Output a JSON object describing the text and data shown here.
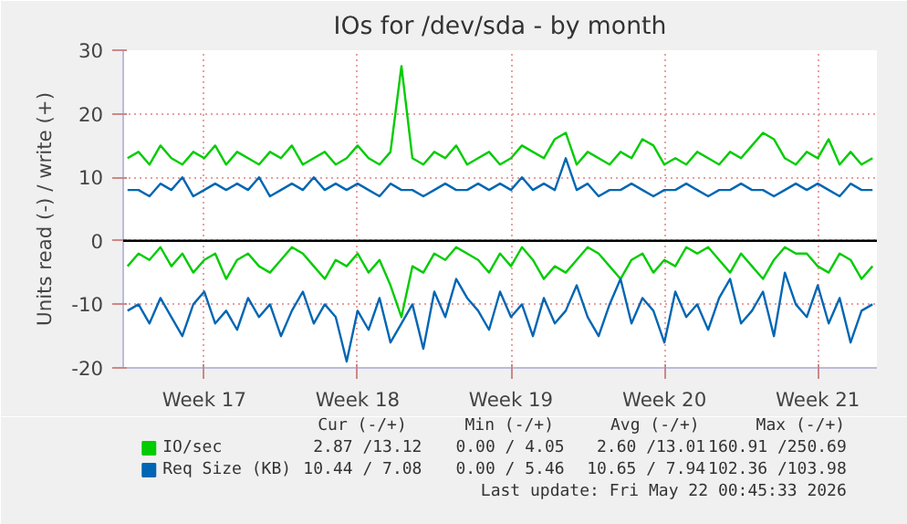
{
  "chart_data": {
    "type": "line",
    "title": "IOs for /dev/sda - by month",
    "ylabel": "Units read (-) / write (+)",
    "categories": [
      null,
      null,
      null,
      null,
      null,
      null,
      null,
      "Week 17",
      null,
      null,
      null,
      null,
      null,
      null,
      null,
      null,
      null,
      null,
      null,
      null,
      null,
      "Week 18",
      null,
      null,
      null,
      null,
      null,
      null,
      null,
      null,
      null,
      null,
      null,
      null,
      null,
      "Week 19",
      null,
      null,
      null,
      null,
      null,
      null,
      null,
      null,
      null,
      null,
      null,
      null,
      null,
      "Week 20",
      null,
      null,
      null,
      null,
      null,
      null,
      null,
      null,
      null,
      null,
      null,
      null,
      null,
      "Week 21",
      null,
      null,
      null,
      null,
      null
    ],
    "series": [
      {
        "name": "IO/sec",
        "color": "#00cc00",
        "values": [
          13,
          14,
          12,
          15,
          13,
          12,
          14,
          13,
          15,
          12,
          14,
          13,
          12,
          14,
          13,
          15,
          12,
          13,
          14,
          12,
          13,
          15,
          13,
          12,
          14,
          27.5,
          13,
          12,
          14,
          13,
          15,
          12,
          13,
          14,
          12,
          13,
          15,
          14,
          13,
          16,
          17,
          12,
          14,
          13,
          12,
          14,
          13,
          16,
          15,
          12,
          13,
          12,
          14,
          13,
          12,
          14,
          13,
          15,
          17,
          16,
          13,
          12,
          14,
          13,
          16,
          12,
          14,
          12,
          13
        ]
      },
      {
        "color": "#00cc00",
        "values": [
          -4,
          -2,
          -3,
          -1,
          -4,
          -2,
          -5,
          -3,
          -2,
          -6,
          -3,
          -2,
          -4,
          -5,
          -3,
          -1,
          -2,
          -4,
          -6,
          -3,
          -4,
          -2,
          -5,
          -3,
          -7,
          -12,
          -4,
          -5,
          -2,
          -3,
          -1,
          -2,
          -3,
          -5,
          -2,
          -4,
          -1,
          -3,
          -6,
          -4,
          -5,
          -3,
          -1,
          -2,
          -4,
          -6,
          -3,
          -2,
          -5,
          -3,
          -4,
          -1,
          -2,
          -1,
          -3,
          -5,
          -2,
          -4,
          -6,
          -3,
          -1,
          -2,
          -2,
          -4,
          -5,
          -2,
          -3,
          -6,
          -4
        ]
      },
      {
        "name": "Req Size (KB)",
        "color": "#0066b3",
        "values": [
          8,
          8,
          7,
          9,
          8,
          10,
          7,
          8,
          9,
          8,
          9,
          8,
          10,
          7,
          8,
          9,
          8,
          10,
          8,
          9,
          8,
          9,
          8,
          7,
          9,
          8,
          8,
          7,
          8,
          9,
          8,
          8,
          9,
          8,
          9,
          8,
          10,
          8,
          9,
          8,
          13,
          8,
          9,
          7,
          8,
          8,
          9,
          8,
          7,
          8,
          8,
          9,
          8,
          7,
          8,
          8,
          9,
          8,
          8,
          7,
          8,
          9,
          8,
          9,
          8,
          7,
          9,
          8,
          8
        ]
      },
      {
        "color": "#0066b3",
        "values": [
          -11,
          -10,
          -13,
          -9,
          -12,
          -15,
          -10,
          -8,
          -13,
          -11,
          -14,
          -9,
          -12,
          -10,
          -15,
          -11,
          -8,
          -13,
          -10,
          -12,
          -19,
          -11,
          -14,
          -9,
          -16,
          -13,
          -10,
          -17,
          -8,
          -12,
          -6,
          -9,
          -11,
          -14,
          -8,
          -12,
          -10,
          -15,
          -9,
          -13,
          -11,
          -7,
          -12,
          -15,
          -10,
          -6,
          -13,
          -9,
          -11,
          -16,
          -8,
          -12,
          -10,
          -14,
          -9,
          -6,
          -13,
          -11,
          -8,
          -15,
          -5,
          -10,
          -12,
          -7,
          -13,
          -9,
          -16,
          -11,
          -10
        ]
      }
    ],
    "ylim": [
      -20,
      30
    ],
    "yticks": [
      -20,
      -10,
      0,
      10,
      20,
      30
    ],
    "ref_lines": [
      {
        "axis": "y",
        "value": 0,
        "color": "#000000"
      }
    ],
    "grid": true,
    "legend": "bottom",
    "marker": "none",
    "line_style": "solid",
    "annotations": [
      "Cur (-/+)",
      "Min (-/+)",
      "Avg (-/+)",
      "Max (-/+)",
      "2.87 /13.12",
      "0.00 / 4.05",
      "2.60 /13.01",
      "160.91 /250.69",
      "10.44 / 7.08",
      "0.00 / 5.46",
      "10.65 / 7.94",
      "102.36 /103.98",
      "Last update: Fri May 22 00:45:33 2026"
    ]
  }
}
